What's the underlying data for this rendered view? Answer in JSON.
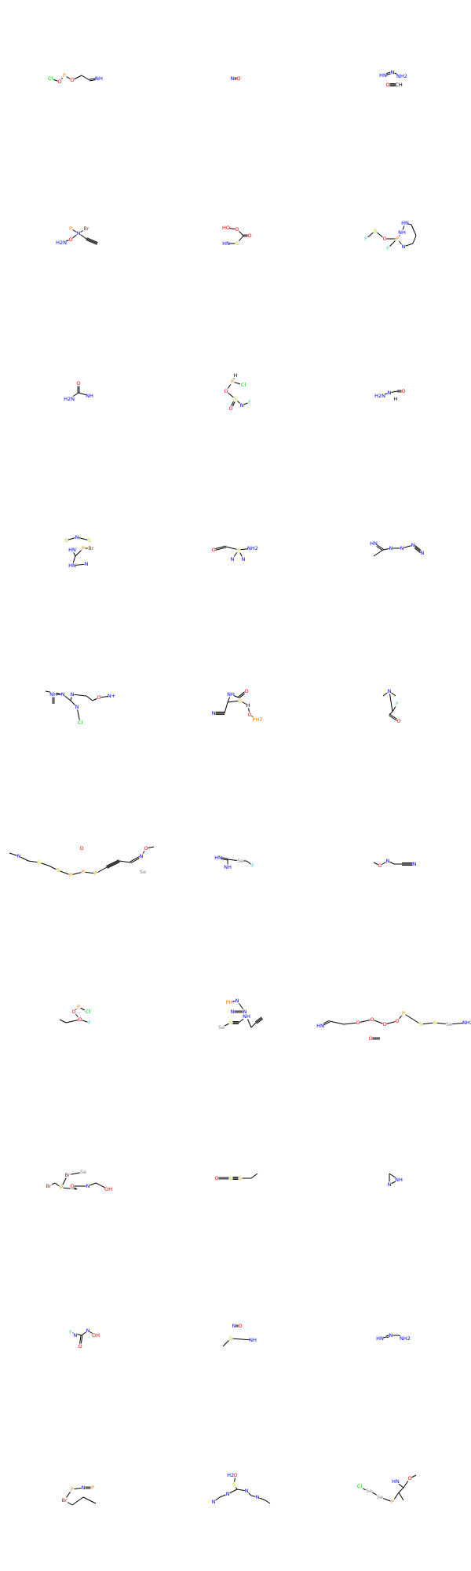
{
  "grid": {
    "columns": 3,
    "rows": 10
  },
  "colors": {
    "bond": "#000000",
    "C": "#000000",
    "N": "#0000FF",
    "O": "#FF0000",
    "S": "#CCCC00",
    "P": "#FF8000",
    "F": "#33CCCC",
    "Cl": "#00CC00",
    "Br": "#A62929",
    "Se": "#7F7F7F",
    "H": "#000000"
  },
  "molecules": [
    {
      "name": "mol-1",
      "atoms": [
        {
          "l": "Cl",
          "e": "Cl"
        },
        {
          "l": "O",
          "e": "O"
        },
        {
          "l": "P",
          "e": "P"
        },
        {
          "l": "O",
          "e": "O"
        },
        {
          "l": "",
          "e": "C"
        },
        {
          "l": "",
          "e": "C"
        },
        {
          "l": "NH",
          "e": "N"
        }
      ]
    },
    {
      "name": "mol-2",
      "atoms": [
        {
          "l": "N",
          "e": "N"
        },
        {
          "l": "O",
          "e": "O"
        }
      ]
    },
    {
      "name": "mol-3",
      "atoms": [
        {
          "l": "HN",
          "e": "N"
        },
        {
          "l": "N",
          "e": "N"
        },
        {
          "l": "NH2",
          "e": "N"
        },
        {
          "l": "O",
          "e": "O"
        },
        {
          "l": "CH",
          "e": "C"
        }
      ]
    },
    {
      "name": "mol-4",
      "atoms": [
        {
          "l": "P",
          "e": "P"
        },
        {
          "l": "Br",
          "e": "Br"
        },
        {
          "l": "N",
          "e": "N"
        },
        {
          "l": "O",
          "e": "O"
        },
        {
          "l": "H2N",
          "e": "N"
        },
        {
          "l": "",
          "e": "C"
        }
      ]
    },
    {
      "name": "mol-5",
      "atoms": [
        {
          "l": "HO",
          "e": "O"
        },
        {
          "l": "O",
          "e": "O"
        },
        {
          "l": "HN",
          "e": "N"
        },
        {
          "l": "S",
          "e": "S"
        },
        {
          "l": "O",
          "e": "O"
        }
      ]
    },
    {
      "name": "mol-6",
      "atoms": [
        {
          "l": "F",
          "e": "F"
        },
        {
          "l": "S",
          "e": "S"
        },
        {
          "l": "O",
          "e": "O"
        },
        {
          "l": "P",
          "e": "P"
        },
        {
          "l": "F",
          "e": "F"
        },
        {
          "l": "NH",
          "e": "N"
        },
        {
          "l": "HN",
          "e": "N"
        },
        {
          "l": "N",
          "e": "N"
        }
      ]
    },
    {
      "name": "mol-7",
      "atoms": [
        {
          "l": "O",
          "e": "O"
        },
        {
          "l": "H2N",
          "e": "N"
        },
        {
          "l": "NH",
          "e": "N"
        }
      ]
    },
    {
      "name": "mol-8",
      "atoms": [
        {
          "l": "H",
          "e": "H"
        },
        {
          "l": "P",
          "e": "P"
        },
        {
          "l": "Cl",
          "e": "Cl"
        },
        {
          "l": "O",
          "e": "O"
        },
        {
          "l": "S",
          "e": "S"
        },
        {
          "l": "O",
          "e": "O"
        },
        {
          "l": "N",
          "e": "N"
        },
        {
          "l": "F",
          "e": "F"
        }
      ]
    },
    {
      "name": "mol-9",
      "atoms": [
        {
          "l": "H2N",
          "e": "N"
        },
        {
          "l": "N",
          "e": "N"
        },
        {
          "l": "H",
          "e": "H"
        },
        {
          "l": "O",
          "e": "O"
        }
      ]
    },
    {
      "name": "mol-10",
      "atoms": [
        {
          "l": "S",
          "e": "S"
        },
        {
          "l": "N",
          "e": "N"
        },
        {
          "l": "S",
          "e": "S"
        },
        {
          "l": "HN",
          "e": "N"
        },
        {
          "l": "P",
          "e": "P"
        },
        {
          "l": "Br",
          "e": "Br"
        },
        {
          "l": "HN",
          "e": "N"
        },
        {
          "l": "N",
          "e": "N"
        }
      ]
    },
    {
      "name": "mol-11",
      "atoms": [
        {
          "l": "O",
          "e": "O"
        },
        {
          "l": "S",
          "e": "S"
        },
        {
          "l": "NH2",
          "e": "N"
        },
        {
          "l": "N",
          "e": "N"
        },
        {
          "l": "N",
          "e": "N"
        }
      ]
    },
    {
      "name": "mol-12",
      "atoms": [
        {
          "l": "HN",
          "e": "N"
        },
        {
          "l": "N",
          "e": "N"
        },
        {
          "l": "N",
          "e": "N"
        },
        {
          "l": "N",
          "e": "N"
        },
        {
          "l": "N",
          "e": "N"
        }
      ]
    },
    {
      "name": "mol-13",
      "atoms": [
        {
          "l": "NH",
          "e": "N"
        },
        {
          "l": "N",
          "e": "N"
        },
        {
          "l": "N",
          "e": "N"
        },
        {
          "l": "O",
          "e": "O"
        },
        {
          "l": "N",
          "e": "N"
        },
        {
          "l": "Cl",
          "e": "Cl"
        },
        {
          "l": "N+",
          "e": "N"
        }
      ]
    },
    {
      "name": "mol-14",
      "atoms": [
        {
          "l": "N",
          "e": "N"
        },
        {
          "l": "O",
          "e": "O"
        },
        {
          "l": "NH",
          "e": "N"
        },
        {
          "l": "S",
          "e": "S"
        },
        {
          "l": "H",
          "e": "H"
        },
        {
          "l": "O",
          "e": "O"
        },
        {
          "l": "PH2",
          "e": "P"
        }
      ]
    },
    {
      "name": "mol-15",
      "atoms": [
        {
          "l": "N",
          "e": "N"
        },
        {
          "l": "F",
          "e": "F"
        },
        {
          "l": "O",
          "e": "O"
        }
      ]
    },
    {
      "name": "mol-16",
      "atoms": [
        {
          "l": "N",
          "e": "N"
        },
        {
          "l": "S",
          "e": "S"
        },
        {
          "l": "S",
          "e": "S"
        },
        {
          "l": "P",
          "e": "P"
        },
        {
          "l": "P",
          "e": "P"
        },
        {
          "l": "P",
          "e": "P"
        },
        {
          "l": "N",
          "e": "N"
        },
        {
          "l": "O",
          "e": "O"
        },
        {
          "l": "O",
          "e": "O"
        },
        {
          "l": "Se",
          "e": "Se"
        }
      ]
    },
    {
      "name": "mol-17",
      "atoms": [
        {
          "l": "HN",
          "e": "N"
        },
        {
          "l": "NH",
          "e": "N"
        },
        {
          "l": "Se",
          "e": "Se"
        },
        {
          "l": "F",
          "e": "F"
        }
      ]
    },
    {
      "name": "mol-18",
      "atoms": [
        {
          "l": "O",
          "e": "O"
        },
        {
          "l": "N",
          "e": "N"
        },
        {
          "l": "N",
          "e": "N"
        }
      ]
    },
    {
      "name": "mol-19",
      "atoms": [
        {
          "l": "O",
          "e": "O"
        },
        {
          "l": "P",
          "e": "P"
        },
        {
          "l": "Cl",
          "e": "Cl"
        },
        {
          "l": "O",
          "e": "O"
        },
        {
          "l": "F",
          "e": "F"
        }
      ]
    },
    {
      "name": "mol-20",
      "atoms": [
        {
          "l": "PH",
          "e": "P"
        },
        {
          "l": "N",
          "e": "N"
        },
        {
          "l": "N",
          "e": "N"
        },
        {
          "l": "Se",
          "e": "Se"
        },
        {
          "l": "N",
          "e": "N"
        },
        {
          "l": "S",
          "e": "S"
        },
        {
          "l": "NH",
          "e": "N"
        }
      ]
    },
    {
      "name": "mol-21",
      "atoms": [
        {
          "l": "HN",
          "e": "N"
        },
        {
          "l": "O",
          "e": "O"
        },
        {
          "l": "O",
          "e": "O"
        },
        {
          "l": "O",
          "e": "O"
        },
        {
          "l": "O",
          "e": "O"
        },
        {
          "l": "P",
          "e": "P"
        },
        {
          "l": "S",
          "e": "S"
        },
        {
          "l": "S",
          "e": "S"
        },
        {
          "l": "Se",
          "e": "Se"
        },
        {
          "l": "NH2",
          "e": "N"
        },
        {
          "l": "O",
          "e": "O"
        }
      ]
    },
    {
      "name": "mol-22",
      "atoms": [
        {
          "l": "Br",
          "e": "Br"
        },
        {
          "l": "P",
          "e": "P"
        },
        {
          "l": "O",
          "e": "O"
        },
        {
          "l": "Br",
          "e": "Br"
        },
        {
          "l": "Se",
          "e": "Se"
        },
        {
          "l": "N",
          "e": "N"
        },
        {
          "l": "OH",
          "e": "O"
        }
      ]
    },
    {
      "name": "mol-23",
      "atoms": [
        {
          "l": "O",
          "e": "O"
        },
        {
          "l": "S",
          "e": "S"
        },
        {
          "l": "S",
          "e": "S"
        }
      ]
    },
    {
      "name": "mol-24",
      "atoms": [
        {
          "l": "N",
          "e": "N"
        },
        {
          "l": "NH",
          "e": "N"
        }
      ]
    },
    {
      "name": "mol-25",
      "atoms": [
        {
          "l": "F",
          "e": "F"
        },
        {
          "l": "N",
          "e": "N"
        },
        {
          "l": "O",
          "e": "O"
        },
        {
          "l": "N",
          "e": "N"
        },
        {
          "l": "OH",
          "e": "O"
        }
      ]
    },
    {
      "name": "mol-26",
      "atoms": [
        {
          "l": "N",
          "e": "N"
        },
        {
          "l": "O",
          "e": "O"
        },
        {
          "l": "S",
          "e": "S"
        },
        {
          "l": "NH",
          "e": "N"
        }
      ]
    },
    {
      "name": "mol-27",
      "atoms": [
        {
          "l": "HN",
          "e": "N"
        },
        {
          "l": "N",
          "e": "N"
        },
        {
          "l": "NH2",
          "e": "N"
        }
      ]
    },
    {
      "name": "mol-28",
      "atoms": [
        {
          "l": "Br",
          "e": "Br"
        },
        {
          "l": "P",
          "e": "P"
        },
        {
          "l": "N",
          "e": "N"
        },
        {
          "l": "P",
          "e": "P"
        }
      ]
    },
    {
      "name": "mol-29",
      "atoms": [
        {
          "l": "H2N",
          "e": "N"
        },
        {
          "l": "O",
          "e": "O"
        },
        {
          "l": "S",
          "e": "S"
        },
        {
          "l": "N",
          "e": "N"
        },
        {
          "l": "N",
          "e": "N"
        },
        {
          "l": "N",
          "e": "N"
        },
        {
          "l": "N",
          "e": "N"
        }
      ]
    },
    {
      "name": "mol-30",
      "atoms": [
        {
          "l": "Cl",
          "e": "Cl"
        },
        {
          "l": "Se",
          "e": "Se"
        },
        {
          "l": "Se",
          "e": "Se"
        },
        {
          "l": "P",
          "e": "P"
        },
        {
          "l": "HN",
          "e": "N"
        },
        {
          "l": "O",
          "e": "O"
        }
      ]
    }
  ]
}
